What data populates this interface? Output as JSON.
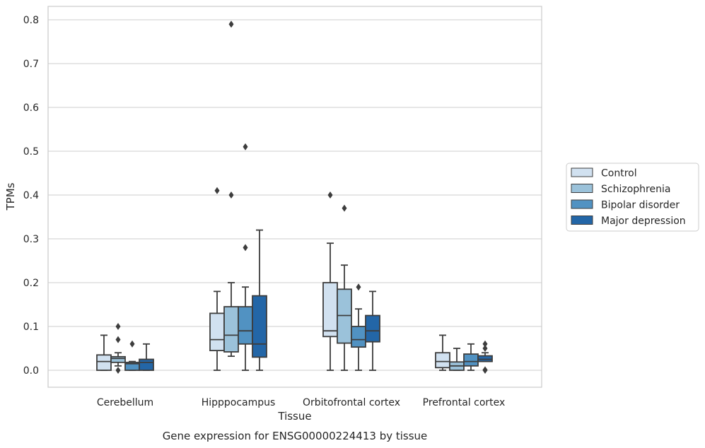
{
  "chart_data": {
    "type": "boxplot",
    "title": "",
    "caption": "Gene expression for ENSG00000224413 by tissue",
    "xlabel": "Tissue",
    "ylabel": "TPMs",
    "ylim": [
      -0.04,
      0.83
    ],
    "yticks": [
      "0.0",
      "0.1",
      "0.2",
      "0.3",
      "0.4",
      "0.5",
      "0.6",
      "0.7",
      "0.8"
    ],
    "grid": "horizontal",
    "legend_position": "right",
    "categories": [
      "Cerebellum",
      "Hipppocampus",
      "Orbitofrontal cortex",
      "Prefrontal cortex"
    ],
    "series": [
      {
        "name": "Control",
        "color": "#d1e1f0",
        "boxes": [
          {
            "whislo": 0.0,
            "q1": 0.0,
            "med": 0.02,
            "q3": 0.035,
            "whishi": 0.08,
            "fliers": []
          },
          {
            "whislo": 0.0,
            "q1": 0.045,
            "med": 0.07,
            "q3": 0.13,
            "whishi": 0.18,
            "fliers": [
              0.41
            ]
          },
          {
            "whislo": 0.0,
            "q1": 0.077,
            "med": 0.09,
            "q3": 0.2,
            "whishi": 0.29,
            "fliers": [
              0.4
            ]
          },
          {
            "whislo": 0.0,
            "q1": 0.006,
            "med": 0.02,
            "q3": 0.04,
            "whishi": 0.08,
            "fliers": []
          }
        ]
      },
      {
        "name": "Schizophrenia",
        "color": "#9bc2da",
        "boxes": [
          {
            "whislo": 0.01,
            "q1": 0.018,
            "med": 0.027,
            "q3": 0.031,
            "whishi": 0.04,
            "fliers": [
              0.1,
              0.07,
              0.0
            ]
          },
          {
            "whislo": 0.032,
            "q1": 0.042,
            "med": 0.08,
            "q3": 0.145,
            "whishi": 0.2,
            "fliers": [
              0.79,
              0.4
            ]
          },
          {
            "whislo": 0.0,
            "q1": 0.062,
            "med": 0.125,
            "q3": 0.185,
            "whishi": 0.24,
            "fliers": [
              0.37
            ]
          },
          {
            "whislo": 0.0,
            "q1": 0.0,
            "med": 0.01,
            "q3": 0.019,
            "whishi": 0.05,
            "fliers": []
          }
        ]
      },
      {
        "name": "Bipolar disorder",
        "color": "#5192c2",
        "boxes": [
          {
            "whislo": 0.0,
            "q1": 0.0,
            "med": 0.015,
            "q3": 0.018,
            "whishi": 0.02,
            "fliers": [
              0.06
            ]
          },
          {
            "whislo": 0.0,
            "q1": 0.06,
            "med": 0.09,
            "q3": 0.145,
            "whishi": 0.19,
            "fliers": [
              0.51,
              0.28
            ]
          },
          {
            "whislo": 0.0,
            "q1": 0.053,
            "med": 0.07,
            "q3": 0.1,
            "whishi": 0.14,
            "fliers": [
              0.19
            ]
          },
          {
            "whislo": 0.0,
            "q1": 0.01,
            "med": 0.02,
            "q3": 0.037,
            "whishi": 0.06,
            "fliers": []
          }
        ]
      },
      {
        "name": "Major depression",
        "color": "#2366a7",
        "boxes": [
          {
            "whislo": 0.0,
            "q1": 0.0,
            "med": 0.018,
            "q3": 0.025,
            "whishi": 0.06,
            "fliers": []
          },
          {
            "whislo": 0.0,
            "q1": 0.03,
            "med": 0.06,
            "q3": 0.17,
            "whishi": 0.32,
            "fliers": []
          },
          {
            "whislo": 0.0,
            "q1": 0.065,
            "med": 0.09,
            "q3": 0.125,
            "whishi": 0.18,
            "fliers": []
          },
          {
            "whislo": 0.02,
            "q1": 0.02,
            "med": 0.025,
            "q3": 0.033,
            "whishi": 0.04,
            "fliers": [
              0.06,
              0.05,
              0.001,
              0.0
            ]
          }
        ]
      }
    ]
  }
}
